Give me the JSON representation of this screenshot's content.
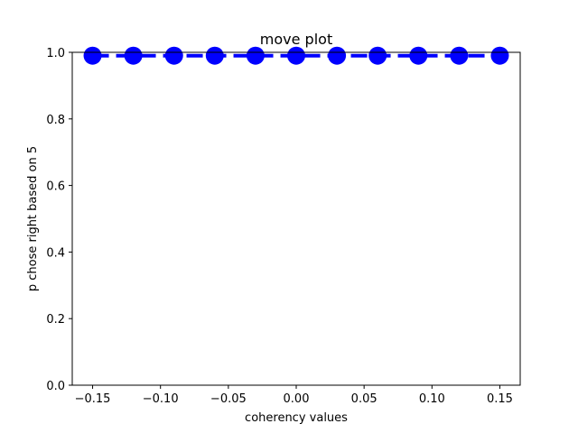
{
  "chart_data": {
    "type": "scatter",
    "title": "move plot",
    "xlabel": "coherency values",
    "ylabel": "p chose right based on 5",
    "xlim": [
      -0.165,
      0.165
    ],
    "ylim": [
      0.0,
      1.0
    ],
    "grid": false,
    "x": [
      -0.15,
      -0.12,
      -0.09,
      -0.06,
      -0.03,
      0.0,
      0.03,
      0.06,
      0.09,
      0.12,
      0.15
    ],
    "series": [
      {
        "color": "#0000ff",
        "marker": "circle",
        "values": [
          0.99,
          0.99,
          0.99,
          0.99,
          0.99,
          0.99,
          0.99,
          0.99,
          0.99,
          0.99,
          0.99
        ]
      }
    ],
    "xticks": [
      -0.15,
      -0.1,
      -0.05,
      0.0,
      0.05,
      0.1,
      0.15
    ],
    "xtick_labels": [
      "−0.15",
      "−0.10",
      "−0.05",
      "0.00",
      "0.05",
      "0.10",
      "0.15"
    ],
    "yticks": [
      0.0,
      0.2,
      0.4,
      0.6,
      0.8,
      1.0
    ],
    "ytick_labels": [
      "0.0",
      "0.2",
      "0.4",
      "0.6",
      "0.8",
      "1.0"
    ]
  }
}
